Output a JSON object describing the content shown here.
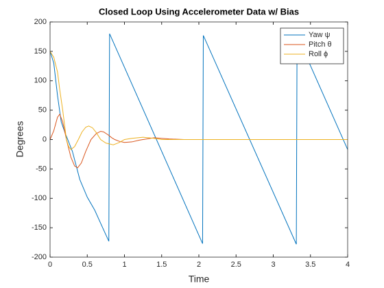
{
  "chart_data": {
    "type": "line",
    "title": "Closed Loop Using Accelerometer Data w/ Bias",
    "x_label": "Time",
    "y_label": "Degrees",
    "xlim": [
      0,
      4
    ],
    "xticks": [
      0,
      0.5,
      1,
      1.5,
      2,
      2.5,
      3,
      3.5,
      4
    ],
    "ylim": [
      -200,
      200
    ],
    "yticks": [
      -200,
      -150,
      -100,
      -50,
      0,
      50,
      100,
      150,
      200
    ],
    "grid": false,
    "legend": "northeast",
    "series": [
      {
        "name": "Yaw ψ",
        "color": "#0072BD",
        "x": [
          0,
          0.05,
          0.1,
          0.15,
          0.2,
          0.3,
          0.4,
          0.5,
          0.6,
          0.7,
          0.79,
          0.8,
          2.05,
          2.06,
          3.31,
          3.32,
          4.0
        ],
        "values": [
          150,
          130,
          75,
          30,
          12,
          -20,
          -68,
          -98,
          -120,
          -148,
          -173,
          180,
          -177,
          177,
          -178,
          177,
          -17
        ]
      },
      {
        "name": "Pitch θ",
        "color": "#D95319",
        "x": [
          0,
          0.05,
          0.1,
          0.13,
          0.17,
          0.22,
          0.28,
          0.33,
          0.37,
          0.42,
          0.48,
          0.55,
          0.62,
          0.68,
          0.72,
          0.78,
          0.83,
          0.87,
          0.93,
          1.0,
          1.1,
          1.2,
          1.3,
          1.4,
          1.5,
          1.6,
          1.8,
          2.0,
          2.5,
          3.0,
          3.5,
          4.0
        ],
        "values": [
          0,
          15,
          38,
          43,
          30,
          0,
          -30,
          -45,
          -48,
          -40,
          -20,
          0,
          10,
          14,
          13,
          8,
          3,
          0,
          -3,
          -5,
          -4,
          -1,
          1,
          3,
          2,
          1,
          0,
          0,
          0,
          0,
          0,
          0
        ]
      },
      {
        "name": "Roll ϕ",
        "color": "#EDB120",
        "x": [
          0,
          0.05,
          0.1,
          0.13,
          0.17,
          0.22,
          0.25,
          0.28,
          0.33,
          0.38,
          0.43,
          0.48,
          0.52,
          0.57,
          0.62,
          0.68,
          0.75,
          0.85,
          0.93,
          1.0,
          1.1,
          1.25,
          1.4,
          1.5,
          1.7,
          2.0,
          2.5,
          3.0,
          3.5,
          4.0
        ],
        "values": [
          150,
          140,
          115,
          85,
          50,
          0,
          -12,
          -17,
          -12,
          0,
          13,
          21,
          23,
          20,
          12,
          0,
          -6,
          -9,
          -5,
          0,
          2,
          4,
          2,
          0,
          0,
          0,
          0,
          0,
          0,
          0
        ]
      }
    ]
  }
}
